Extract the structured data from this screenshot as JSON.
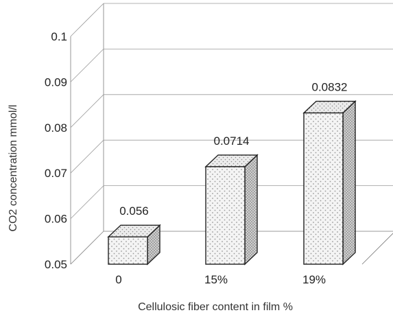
{
  "chart_data": {
    "type": "bar",
    "title": "",
    "xlabel": "Cellulosic fiber content in film %",
    "ylabel": "CO2 concentration mmol/l",
    "categories": [
      "0",
      "15%",
      "19%"
    ],
    "values": [
      0.056,
      0.0714,
      0.0832
    ],
    "data_labels": [
      "0.056",
      "0.0714",
      "0.0832"
    ],
    "y_ticks": [
      "0.05",
      "0.06",
      "0.07",
      "0.08",
      "0.09",
      "0.1"
    ],
    "ylim": [
      0.05,
      0.1
    ],
    "grid": true,
    "bar_style": "3d-dotted",
    "colors": {
      "bar_face": "#f2f2f2",
      "bar_side": "#c8c8c8",
      "dots": "#9a9a9a"
    }
  }
}
